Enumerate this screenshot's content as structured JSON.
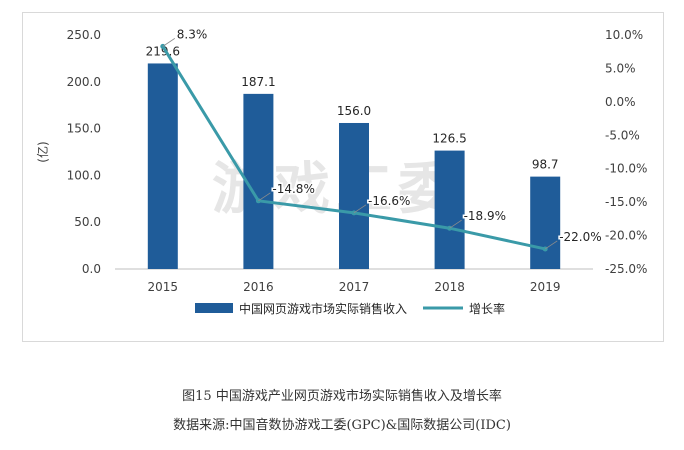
{
  "chart_data": {
    "type": "bar+line",
    "categories": [
      "2015",
      "2016",
      "2017",
      "2018",
      "2019"
    ],
    "series": [
      {
        "name": "中国网页游戏市场实际销售收入",
        "kind": "bar",
        "axis": "left",
        "values": [
          219.6,
          187.1,
          156.0,
          126.5,
          98.7
        ],
        "labels": [
          "219.6",
          "187.1",
          "156.0",
          "126.5",
          "98.7"
        ],
        "color": "#1f5c99"
      },
      {
        "name": "增长率",
        "kind": "line",
        "axis": "right",
        "values": [
          8.3,
          -14.8,
          -16.6,
          -18.9,
          -22.0
        ],
        "labels": [
          "8.3%",
          "-14.8%",
          "-16.6%",
          "-18.9%",
          "-22.0%"
        ],
        "color": "#3a9aa8"
      }
    ],
    "left_axis": {
      "label": "(亿)",
      "ylim": [
        0,
        250
      ],
      "ticks": [
        0,
        50,
        100,
        150,
        200,
        250
      ],
      "tick_labels": [
        "0.0",
        "50.0",
        "100.0",
        "150.0",
        "200.0",
        "250.0"
      ]
    },
    "right_axis": {
      "ylim": [
        -25,
        10
      ],
      "ticks": [
        10,
        5,
        0,
        -5,
        -10,
        -15,
        -20,
        -25
      ],
      "tick_labels": [
        "10.0%",
        "5.0%",
        "0.0%",
        "-5.0%",
        "-10.0%",
        "-15.0%",
        "-20.0%",
        "-25.0%"
      ]
    },
    "legend_position": "bottom-center",
    "watermark": "游戏工委"
  },
  "caption": {
    "title": "图15  中国游戏产业网页游戏市场实际销售收入及增长率",
    "source": "数据来源:中国音数协游戏工委(GPC)&国际数据公司(IDC)"
  }
}
